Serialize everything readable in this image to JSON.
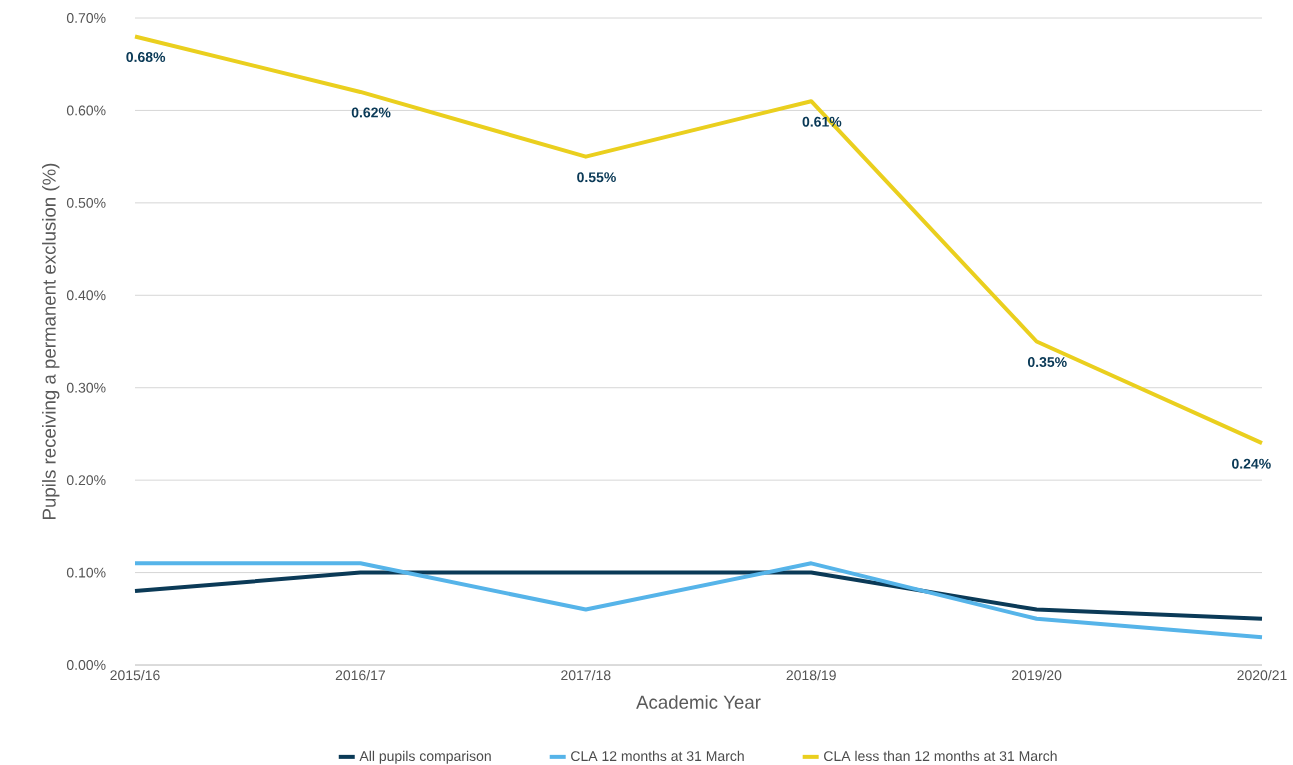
{
  "chart_data": {
    "type": "line",
    "xlabel": "Academic Year",
    "ylabel": "Pupils receiving a permanent exclusion (%)",
    "categories": [
      "2015/16",
      "2016/17",
      "2017/18",
      "2018/19",
      "2019/20",
      "2020/21"
    ],
    "series": [
      {
        "name": "All pupils comparison",
        "color": "#0b3a57",
        "values": [
          0.08,
          0.1,
          0.1,
          0.1,
          0.06,
          0.05
        ]
      },
      {
        "name": "CLA 12 months at 31 March",
        "color": "#56b4e9",
        "values": [
          0.11,
          0.11,
          0.06,
          0.11,
          0.05,
          0.03
        ]
      },
      {
        "name": "CLA less than 12 months at 31 March",
        "color": "#eacf1e",
        "values": [
          0.68,
          0.62,
          0.55,
          0.61,
          0.35,
          0.24
        ],
        "value_labels": [
          "0.68%",
          "0.62%",
          "0.55%",
          "0.61%",
          "0.35%",
          "0.24%"
        ]
      }
    ],
    "ylim": [
      0,
      0.7
    ],
    "yticks": [
      {
        "value": 0,
        "label": "0.00%"
      },
      {
        "value": 0.1,
        "label": "0.10%"
      },
      {
        "value": 0.2,
        "label": "0.20%"
      },
      {
        "value": 0.3,
        "label": "0.30%"
      },
      {
        "value": 0.4,
        "label": "0.40%"
      },
      {
        "value": 0.5,
        "label": "0.50%"
      },
      {
        "value": 0.6,
        "label": "0.60%"
      },
      {
        "value": 0.7,
        "label": "0.70%"
      }
    ],
    "grid": "y",
    "legend": "bottom",
    "marker": "none",
    "line_style": "solid"
  }
}
